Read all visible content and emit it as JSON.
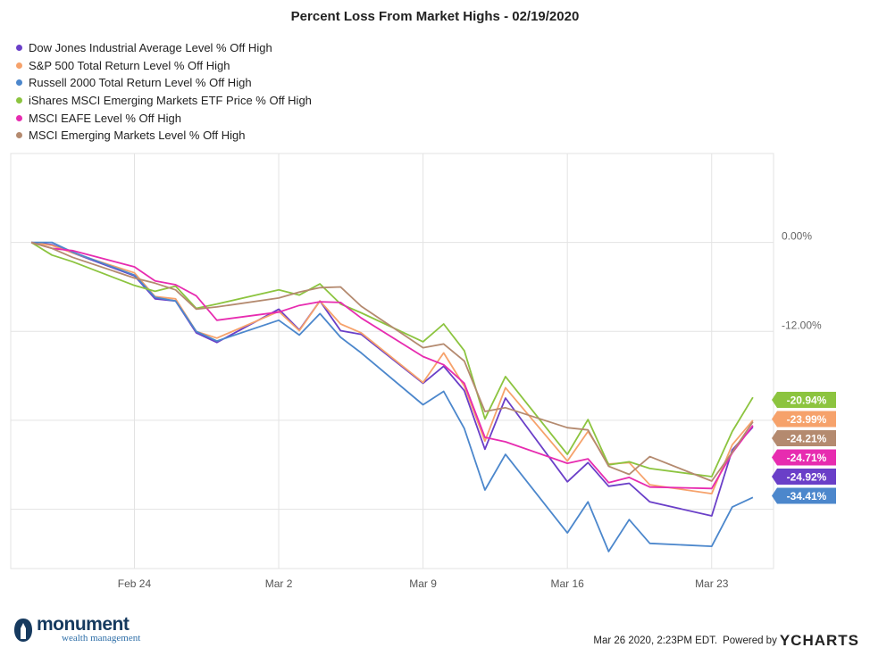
{
  "chart_data": {
    "type": "line",
    "title": "Percent Loss From Market Highs - 02/19/2020",
    "x_ticks": [
      "Feb 24",
      "Mar 2",
      "Mar 9",
      "Mar 16",
      "Mar 23"
    ],
    "y_ticks": [
      "0.00%",
      "-12.00%"
    ],
    "ylim": [
      -44,
      12
    ],
    "grid": true,
    "legend_position": "top-left",
    "dates": [
      "2020-02-19",
      "2020-02-20",
      "2020-02-21",
      "2020-02-24",
      "2020-02-25",
      "2020-02-26",
      "2020-02-27",
      "2020-02-28",
      "2020-03-02",
      "2020-03-03",
      "2020-03-04",
      "2020-03-05",
      "2020-03-06",
      "2020-03-09",
      "2020-03-10",
      "2020-03-11",
      "2020-03-12",
      "2020-03-13",
      "2020-03-16",
      "2020-03-17",
      "2020-03-18",
      "2020-03-19",
      "2020-03-20",
      "2020-03-23",
      "2020-03-24",
      "2020-03-25"
    ],
    "series": [
      {
        "name": "Dow Jones Industrial Average Level % Off High",
        "color": "#6a3fc8",
        "end_label": "-24.92%",
        "values": [
          0.0,
          -0.3,
          -1.4,
          -4.5,
          -7.6,
          -7.9,
          -12.2,
          -13.5,
          -9.0,
          -11.8,
          -7.9,
          -11.9,
          -12.4,
          -19.0,
          -16.7,
          -20.0,
          -27.9,
          -21.0,
          -32.3,
          -29.7,
          -32.9,
          -32.5,
          -35.0,
          -36.9,
          -28.0,
          -24.9
        ]
      },
      {
        "name": "S&P 500 Total Return Level % Off High",
        "color": "#f6a26b",
        "end_label": "-23.99%",
        "values": [
          0.0,
          -0.4,
          -1.4,
          -4.1,
          -7.3,
          -7.6,
          -12.0,
          -12.9,
          -9.3,
          -11.9,
          -7.9,
          -11.0,
          -12.2,
          -18.9,
          -14.9,
          -19.4,
          -26.8,
          -19.6,
          -29.5,
          -25.5,
          -29.9,
          -29.7,
          -32.7,
          -33.9,
          -27.3,
          -24.0
        ]
      },
      {
        "name": "Russell 2000 Total Return Level % Off High",
        "color": "#4c87cc",
        "end_label": "-34.41%",
        "values": [
          0.0,
          0.0,
          -1.3,
          -4.4,
          -7.4,
          -7.9,
          -12.0,
          -13.3,
          -10.5,
          -12.5,
          -9.6,
          -12.8,
          -14.9,
          -21.9,
          -20.1,
          -25.1,
          -33.4,
          -28.6,
          -39.2,
          -35.0,
          -41.7,
          -37.4,
          -40.6,
          -41.0,
          -35.7,
          -34.4
        ]
      },
      {
        "name": "iShares MSCI Emerging Markets ETF Price % Off High",
        "color": "#8cc43f",
        "end_label": "-20.94%",
        "values": [
          0.0,
          -1.7,
          -2.6,
          -5.8,
          -6.6,
          -5.9,
          -8.9,
          -8.3,
          -6.4,
          -7.1,
          -5.6,
          -8.3,
          -9.5,
          -13.4,
          -11.0,
          -14.6,
          -23.8,
          -18.1,
          -28.6,
          -23.9,
          -30.0,
          -29.6,
          -30.5,
          -31.6,
          -25.5,
          -20.9
        ]
      },
      {
        "name": "MSCI EAFE Level % Off High",
        "color": "#e72cb0",
        "end_label": "-24.71%",
        "values": [
          0.0,
          -0.8,
          -1.1,
          -3.3,
          -5.2,
          -5.7,
          -7.2,
          -10.5,
          -9.4,
          -8.5,
          -8.0,
          -8.1,
          -10.2,
          -15.4,
          -16.5,
          -19.0,
          -26.3,
          -26.9,
          -29.8,
          -29.2,
          -32.4,
          -31.7,
          -33.0,
          -33.2,
          -28.4,
          -24.7
        ]
      },
      {
        "name": "MSCI Emerging Markets Level % Off High",
        "color": "#b48a6f",
        "end_label": "-24.21%",
        "values": [
          0.0,
          -0.8,
          -2.0,
          -4.8,
          -5.5,
          -6.4,
          -9.0,
          -8.7,
          -7.5,
          -6.7,
          -6.1,
          -6.0,
          -8.6,
          -14.2,
          -13.7,
          -16.0,
          -22.8,
          -22.3,
          -25.0,
          -25.3,
          -30.2,
          -31.3,
          -28.9,
          -32.2,
          -28.3,
          -24.2
        ]
      }
    ]
  },
  "footer": {
    "brand_name": "monument",
    "brand_sub": "wealth management",
    "timestamp": "Mar 26 2020, 2:23PM EDT.",
    "powered_by": "Powered by",
    "ycharts": "YCHARTS"
  }
}
